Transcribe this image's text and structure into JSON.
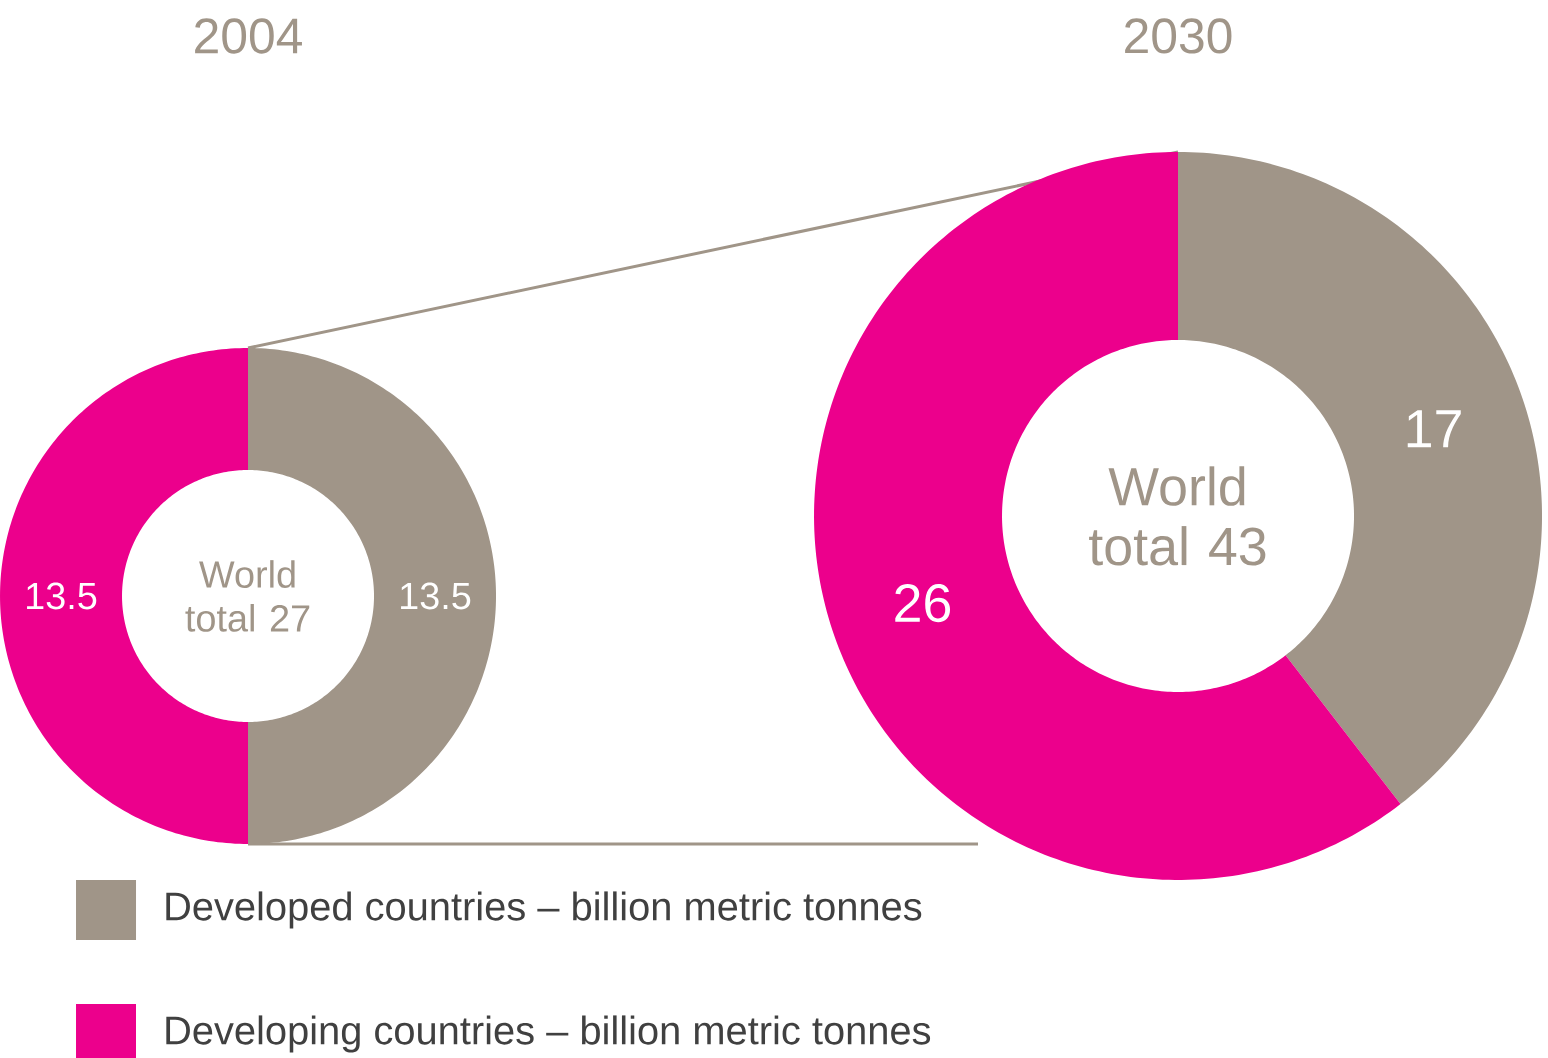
{
  "chart_data": [
    {
      "type": "donut",
      "title": "2004",
      "categories": [
        "Developed countries – billion metric tonnes",
        "Developing countries – billion metric tonnes"
      ],
      "values": [
        13.5,
        13.5
      ],
      "colors": [
        "#a09588",
        "#ec008c"
      ],
      "data_labels": true,
      "annotations": [
        "World total 27"
      ],
      "legend": "bottom"
    },
    {
      "type": "donut",
      "title": "2030",
      "categories": [
        null,
        null
      ],
      "values": [
        17,
        26
      ],
      "colors": [
        "#a09588",
        "#ec008c"
      ],
      "data_labels": true,
      "annotations": [
        "World total 43"
      ]
    }
  ]
}
